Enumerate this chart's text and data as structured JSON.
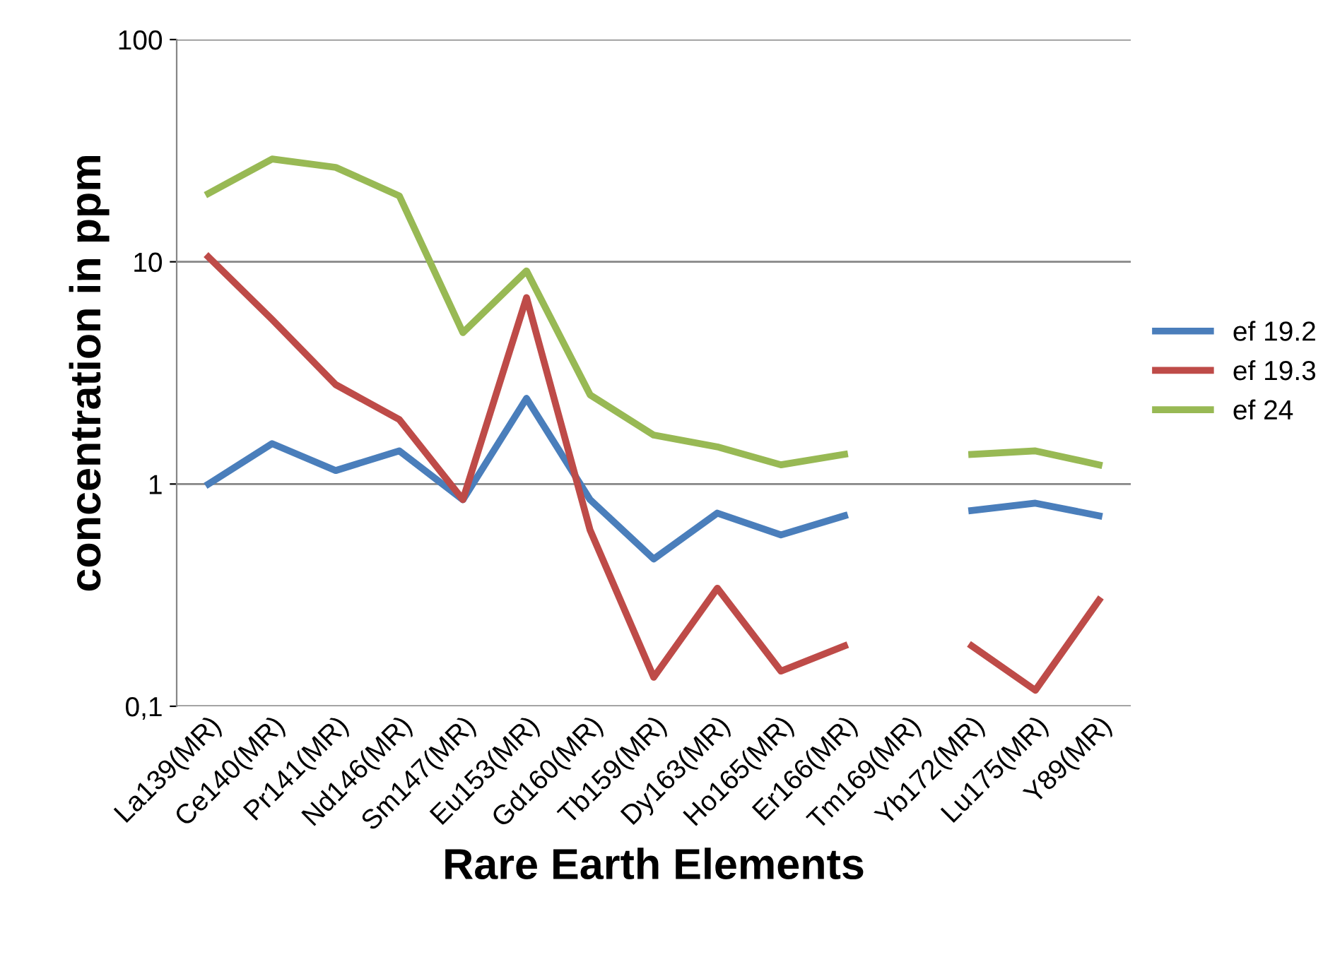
{
  "chart_data": {
    "type": "line",
    "xlabel": "Rare Earth Elements",
    "ylabel": "concentration in ppm",
    "categories": [
      "La139(MR)",
      "Ce140(MR)",
      "Pr141(MR)",
      "Nd146(MR)",
      "Sm147(MR)",
      "Eu153(MR)",
      "Gd160(MR)",
      "Tb159(MR)",
      "Dy163(MR)",
      "Ho165(MR)",
      "Er166(MR)",
      "Tm169(MR)",
      "Yb172(MR)",
      "Lu175(MR)",
      "Y89(MR)"
    ],
    "series": [
      {
        "name": "ef 19.2",
        "color": "#4a7ebb",
        "values": [
          1.0,
          1.52,
          1.15,
          1.41,
          0.85,
          2.43,
          0.85,
          0.46,
          0.74,
          0.59,
          0.72,
          null,
          0.76,
          0.82,
          0.72
        ]
      },
      {
        "name": "ef 19.3",
        "color": "#be4b48",
        "values": [
          10.5,
          5.5,
          2.8,
          1.95,
          0.85,
          6.9,
          0.62,
          0.135,
          0.34,
          0.144,
          0.187,
          null,
          0.187,
          0.118,
          0.3
        ]
      },
      {
        "name": "ef 24",
        "color": "#98b954",
        "values": [
          20.3,
          29,
          26.6,
          19.8,
          4.8,
          9.1,
          2.52,
          1.66,
          1.47,
          1.22,
          1.36,
          null,
          1.36,
          1.41,
          1.22
        ]
      }
    ],
    "log": true,
    "ylim": [
      0.1,
      100
    ],
    "yticks": [
      {
        "value": 0.1,
        "label": "0,1"
      },
      1,
      10,
      100
    ],
    "grid": "y",
    "legend": "right",
    "marker": "none",
    "line_style": "solid"
  }
}
